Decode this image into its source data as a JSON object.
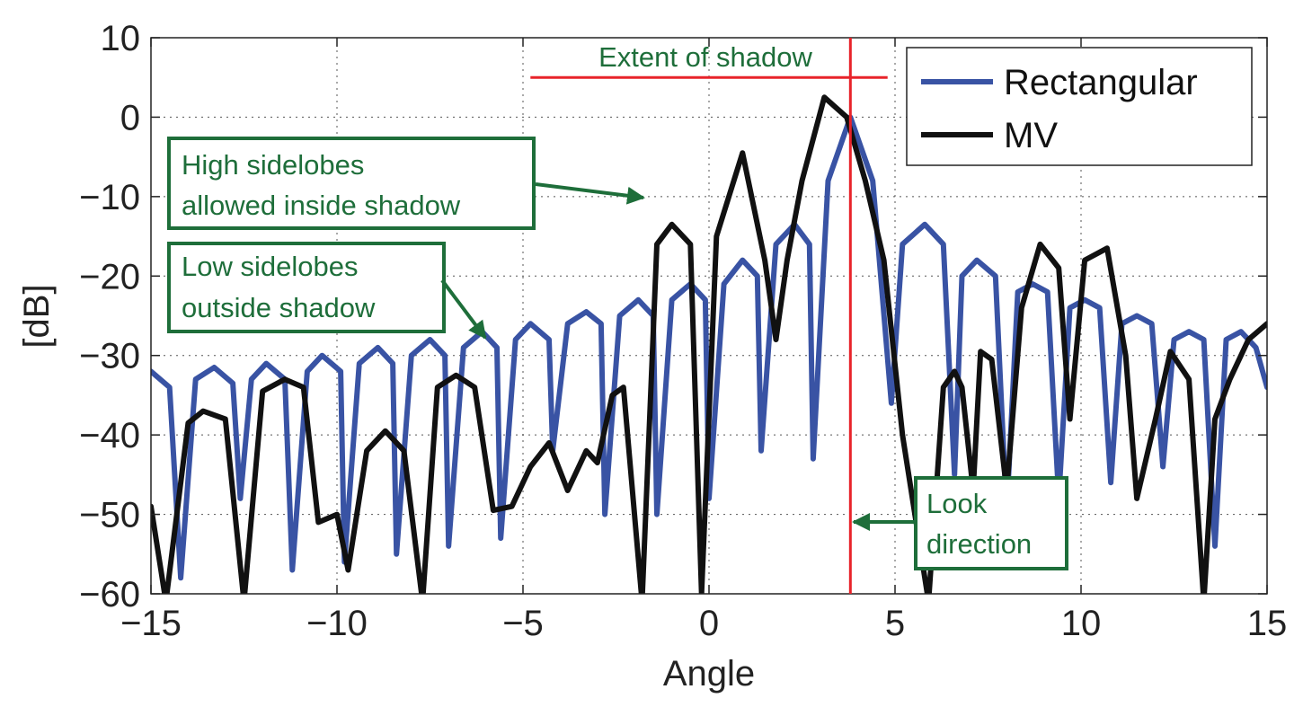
{
  "chart_data": {
    "type": "line",
    "xlabel": "Angle",
    "ylabel": "[dB]",
    "xlim": [
      -15,
      15
    ],
    "ylim": [
      -60,
      10
    ],
    "xticks": [
      -15,
      -10,
      -5,
      0,
      5,
      10,
      15
    ],
    "yticks": [
      10,
      0,
      -10,
      -20,
      -30,
      -40,
      -50,
      -60
    ],
    "xtick_labels": [
      "−15",
      "−10",
      "−5",
      "0",
      "5",
      "10",
      "15"
    ],
    "ytick_labels": [
      "10",
      "0",
      "−10",
      "−20",
      "−30",
      "−40",
      "−50",
      "−60"
    ],
    "grid": true,
    "legend": {
      "position": "top-right",
      "entries": [
        "Rectangular",
        "MV"
      ]
    },
    "colors": {
      "Rectangular": "#3953a4",
      "MV": "#111111",
      "annotation": "#1e6e3a",
      "marker": "#e8232a"
    },
    "series": [
      {
        "name": "Rectangular",
        "x": [
          -15.0,
          -14.5,
          -14.2,
          -13.8,
          -13.3,
          -12.8,
          -12.6,
          -12.3,
          -11.9,
          -11.4,
          -11.2,
          -10.8,
          -10.4,
          -9.9,
          -9.8,
          -9.4,
          -8.9,
          -8.5,
          -8.4,
          -8.0,
          -7.5,
          -7.1,
          -7.0,
          -6.6,
          -6.1,
          -5.7,
          -5.6,
          -5.2,
          -4.8,
          -4.3,
          -4.2,
          -3.8,
          -3.3,
          -2.9,
          -2.8,
          -2.4,
          -1.9,
          -1.5,
          -1.4,
          -1.0,
          -0.5,
          -0.1,
          0.0,
          0.4,
          0.9,
          1.3,
          1.4,
          1.8,
          2.3,
          2.7,
          2.8,
          3.2,
          3.8,
          4.4,
          4.9,
          5.2,
          5.8,
          6.3,
          6.6,
          6.8,
          7.2,
          7.7,
          8.0,
          8.3,
          8.7,
          9.1,
          9.4,
          9.7,
          10.1,
          10.5,
          10.8,
          11.1,
          11.5,
          11.9,
          12.2,
          12.5,
          12.9,
          13.3,
          13.6,
          13.9,
          14.3,
          14.7,
          15.0
        ],
        "y": [
          -32.0,
          -34.0,
          -58.0,
          -33.0,
          -31.5,
          -33.5,
          -48.0,
          -33.0,
          -31.0,
          -33.0,
          -57.0,
          -32.0,
          -30.0,
          -32.0,
          -56.0,
          -31.0,
          -29.0,
          -31.0,
          -55.0,
          -30.0,
          -28.0,
          -30.0,
          -54.0,
          -29.0,
          -27.0,
          -29.0,
          -53.0,
          -28.0,
          -26.0,
          -28.0,
          -42.0,
          -26.0,
          -24.5,
          -26.0,
          -50.0,
          -25.0,
          -23.0,
          -25.0,
          -50.0,
          -23.0,
          -21.0,
          -23.0,
          -48.0,
          -21.0,
          -18.0,
          -20.0,
          -42.0,
          -16.0,
          -13.5,
          -16.0,
          -43.0,
          -8.0,
          0.0,
          -8.0,
          -36.0,
          -16.0,
          -13.5,
          -16.0,
          -45.0,
          -20.0,
          -18.0,
          -20.0,
          -50.0,
          -22.0,
          -21.0,
          -22.0,
          -48.0,
          -24.0,
          -23.0,
          -24.0,
          -46.0,
          -26.0,
          -25.0,
          -26.0,
          -44.0,
          -28.0,
          -27.0,
          -28.0,
          -54.0,
          -28.0,
          -27.0,
          -29.0,
          -34.0
        ]
      },
      {
        "name": "MV",
        "x": [
          -15.0,
          -14.6,
          -14.0,
          -13.6,
          -13.0,
          -12.5,
          -12.0,
          -11.4,
          -10.9,
          -10.5,
          -10.0,
          -9.7,
          -9.2,
          -8.7,
          -8.2,
          -7.7,
          -7.3,
          -6.8,
          -6.3,
          -5.8,
          -5.3,
          -4.8,
          -4.3,
          -3.8,
          -3.3,
          -3.0,
          -2.6,
          -2.3,
          -1.8,
          -1.4,
          -1.0,
          -0.5,
          -0.2,
          0.2,
          0.9,
          1.5,
          1.8,
          2.1,
          2.5,
          3.1,
          3.7,
          4.2,
          4.7,
          5.2,
          5.9,
          6.3,
          6.6,
          6.8,
          7.1,
          7.3,
          7.6,
          8.0,
          8.4,
          8.9,
          9.4,
          9.7,
          10.1,
          10.7,
          11.2,
          11.5,
          12.0,
          12.4,
          12.9,
          13.3,
          13.6,
          14.0,
          14.5,
          15.0
        ],
        "y": [
          -49.0,
          -61.0,
          -38.5,
          -37.0,
          -38.0,
          -61.0,
          -34.5,
          -33.0,
          -34.0,
          -51.0,
          -50.0,
          -57.0,
          -42.0,
          -39.5,
          -42.0,
          -61.0,
          -34.0,
          -32.5,
          -34.0,
          -49.5,
          -49.0,
          -44.0,
          -41.0,
          -47.0,
          -42.0,
          -43.5,
          -35.0,
          -34.0,
          -61.0,
          -16.0,
          -13.5,
          -16.0,
          -60.0,
          -15.0,
          -4.5,
          -18.0,
          -28.0,
          -18.0,
          -8.0,
          2.5,
          0.0,
          -8.0,
          -18.0,
          -40.0,
          -61.0,
          -34.0,
          -32.0,
          -34.0,
          -47.0,
          -29.5,
          -30.5,
          -47.0,
          -24.0,
          -16.0,
          -19.0,
          -38.0,
          -18.0,
          -16.5,
          -30.0,
          -48.0,
          -38.0,
          -29.5,
          -33.0,
          -61.0,
          -38.0,
          -33.0,
          -28.0,
          -26.0
        ]
      }
    ],
    "annotations": {
      "extent_label": "Extent of shadow",
      "high_sidelobes_line1": "High sidelobes",
      "high_sidelobes_line2": "allowed inside shadow",
      "low_sidelobes_line1": "Low sidelobes",
      "low_sidelobes_line2": "outside shadow",
      "look_line1": "Look",
      "look_line2": "direction"
    },
    "markers": {
      "look_direction_x": 3.8,
      "shadow_x": [
        -4.8,
        4.8
      ],
      "shadow_y": 5.0
    }
  }
}
